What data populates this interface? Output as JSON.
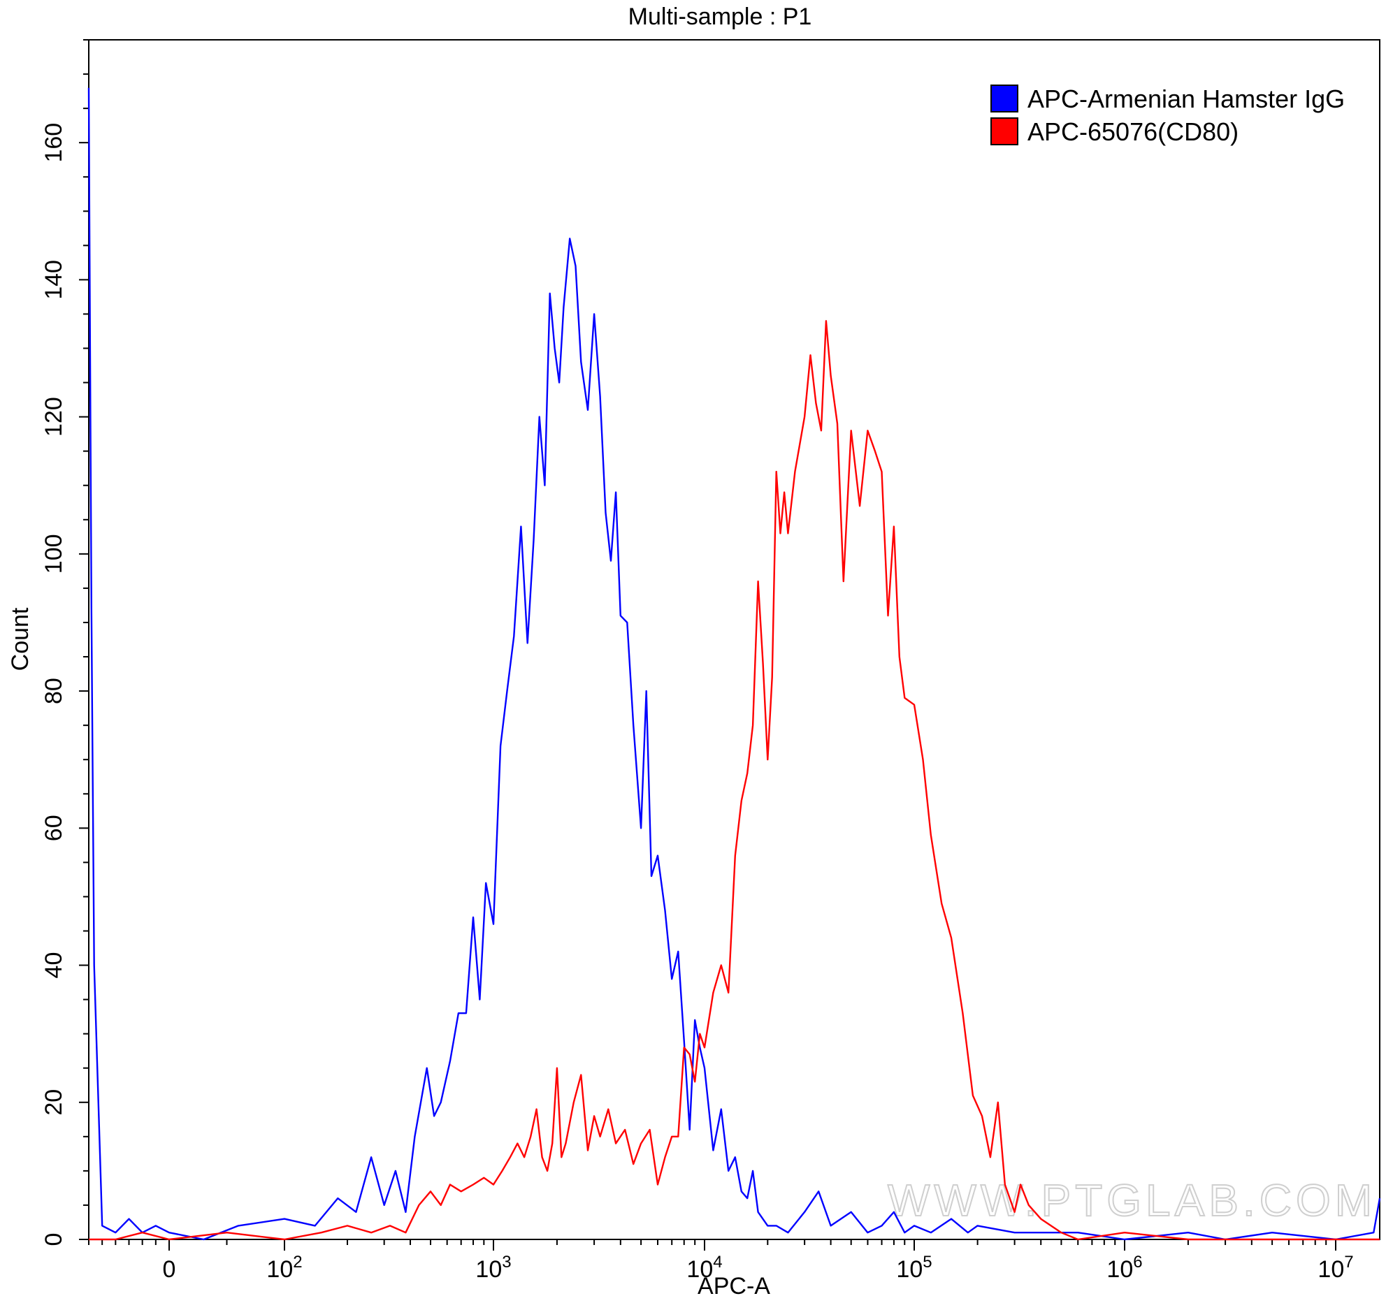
{
  "chart_data": {
    "type": "line",
    "title": "Multi-sample : P1",
    "xlabel": "APC-A",
    "ylabel": "Count",
    "x_scale": "biexponential",
    "xlim": [
      -300,
      16000000
    ],
    "ylim": [
      0,
      175
    ],
    "y_ticks": [
      0,
      20,
      40,
      60,
      80,
      100,
      120,
      140,
      160
    ],
    "x_ticks": [
      {
        "value": 0,
        "label": "0"
      },
      {
        "value": 100,
        "base": "10",
        "exp": "2"
      },
      {
        "value": 1000,
        "base": "10",
        "exp": "3"
      },
      {
        "value": 10000,
        "base": "10",
        "exp": "4"
      },
      {
        "value": 100000,
        "base": "10",
        "exp": "5"
      },
      {
        "value": 1000000,
        "base": "10",
        "exp": "6"
      },
      {
        "value": 10000000,
        "base": "10",
        "exp": "7"
      }
    ],
    "legend_position": "top-right",
    "watermark": "WWW.PTGLAB.COM",
    "series": [
      {
        "name": "APC-Armenian Hamster IgG",
        "color": "#0000ff",
        "points": [
          [
            -300,
            168
          ],
          [
            -290,
            92
          ],
          [
            -280,
            40
          ],
          [
            -250,
            2
          ],
          [
            -200,
            1
          ],
          [
            -150,
            3
          ],
          [
            -100,
            1
          ],
          [
            -50,
            2
          ],
          [
            0,
            1
          ],
          [
            30,
            0
          ],
          [
            60,
            2
          ],
          [
            100,
            3
          ],
          [
            140,
            2
          ],
          [
            180,
            6
          ],
          [
            220,
            4
          ],
          [
            260,
            12
          ],
          [
            300,
            5
          ],
          [
            340,
            10
          ],
          [
            380,
            4
          ],
          [
            420,
            15
          ],
          [
            480,
            25
          ],
          [
            520,
            18
          ],
          [
            560,
            20
          ],
          [
            620,
            26
          ],
          [
            680,
            33
          ],
          [
            740,
            33
          ],
          [
            800,
            47
          ],
          [
            860,
            35
          ],
          [
            920,
            52
          ],
          [
            1000,
            46
          ],
          [
            1080,
            72
          ],
          [
            1160,
            80
          ],
          [
            1250,
            88
          ],
          [
            1350,
            104
          ],
          [
            1450,
            87
          ],
          [
            1550,
            102
          ],
          [
            1650,
            120
          ],
          [
            1750,
            110
          ],
          [
            1850,
            138
          ],
          [
            1950,
            130
          ],
          [
            2050,
            125
          ],
          [
            2150,
            136
          ],
          [
            2300,
            146
          ],
          [
            2450,
            142
          ],
          [
            2600,
            128
          ],
          [
            2800,
            121
          ],
          [
            3000,
            135
          ],
          [
            3200,
            123
          ],
          [
            3400,
            106
          ],
          [
            3600,
            99
          ],
          [
            3800,
            109
          ],
          [
            4000,
            91
          ],
          [
            4300,
            90
          ],
          [
            4600,
            75
          ],
          [
            5000,
            60
          ],
          [
            5300,
            80
          ],
          [
            5600,
            53
          ],
          [
            6000,
            56
          ],
          [
            6500,
            48
          ],
          [
            7000,
            38
          ],
          [
            7500,
            42
          ],
          [
            8000,
            29
          ],
          [
            8500,
            16
          ],
          [
            9000,
            32
          ],
          [
            9500,
            28
          ],
          [
            10000,
            25
          ],
          [
            11000,
            13
          ],
          [
            12000,
            19
          ],
          [
            13000,
            10
          ],
          [
            14000,
            12
          ],
          [
            15000,
            7
          ],
          [
            16000,
            6
          ],
          [
            17000,
            10
          ],
          [
            18000,
            4
          ],
          [
            20000,
            2
          ],
          [
            22000,
            2
          ],
          [
            25000,
            1
          ],
          [
            30000,
            4
          ],
          [
            35000,
            7
          ],
          [
            40000,
            2
          ],
          [
            50000,
            4
          ],
          [
            60000,
            1
          ],
          [
            70000,
            2
          ],
          [
            80000,
            4
          ],
          [
            90000,
            1
          ],
          [
            100000,
            2
          ],
          [
            120000,
            1
          ],
          [
            150000,
            3
          ],
          [
            180000,
            1
          ],
          [
            200000,
            2
          ],
          [
            300000,
            1
          ],
          [
            400000,
            1
          ],
          [
            600000,
            1
          ],
          [
            1000000,
            0
          ],
          [
            2000000,
            1
          ],
          [
            3000000,
            0
          ],
          [
            5000000,
            1
          ],
          [
            10000000,
            0
          ],
          [
            15000000,
            1
          ],
          [
            16000000,
            6
          ]
        ]
      },
      {
        "name": "APC-65076(CD80)",
        "color": "#ff0000",
        "points": [
          [
            -300,
            0
          ],
          [
            -200,
            0
          ],
          [
            -100,
            1
          ],
          [
            0,
            0
          ],
          [
            50,
            1
          ],
          [
            100,
            0
          ],
          [
            150,
            1
          ],
          [
            200,
            2
          ],
          [
            260,
            1
          ],
          [
            320,
            2
          ],
          [
            380,
            1
          ],
          [
            440,
            5
          ],
          [
            500,
            7
          ],
          [
            560,
            5
          ],
          [
            620,
            8
          ],
          [
            700,
            7
          ],
          [
            800,
            8
          ],
          [
            900,
            9
          ],
          [
            1000,
            8
          ],
          [
            1100,
            10
          ],
          [
            1200,
            12
          ],
          [
            1300,
            14
          ],
          [
            1400,
            12
          ],
          [
            1500,
            15
          ],
          [
            1600,
            19
          ],
          [
            1700,
            12
          ],
          [
            1800,
            10
          ],
          [
            1900,
            14
          ],
          [
            2000,
            25
          ],
          [
            2100,
            12
          ],
          [
            2200,
            14
          ],
          [
            2400,
            20
          ],
          [
            2600,
            24
          ],
          [
            2800,
            13
          ],
          [
            3000,
            18
          ],
          [
            3200,
            15
          ],
          [
            3500,
            19
          ],
          [
            3800,
            14
          ],
          [
            4200,
            16
          ],
          [
            4600,
            11
          ],
          [
            5000,
            14
          ],
          [
            5500,
            16
          ],
          [
            6000,
            8
          ],
          [
            6500,
            12
          ],
          [
            7000,
            15
          ],
          [
            7500,
            15
          ],
          [
            8000,
            28
          ],
          [
            8500,
            27
          ],
          [
            9000,
            23
          ],
          [
            9500,
            30
          ],
          [
            10000,
            28
          ],
          [
            11000,
            36
          ],
          [
            12000,
            40
          ],
          [
            13000,
            36
          ],
          [
            14000,
            56
          ],
          [
            15000,
            64
          ],
          [
            16000,
            68
          ],
          [
            17000,
            75
          ],
          [
            18000,
            96
          ],
          [
            19000,
            84
          ],
          [
            20000,
            70
          ],
          [
            21000,
            82
          ],
          [
            22000,
            112
          ],
          [
            23000,
            103
          ],
          [
            24000,
            109
          ],
          [
            25000,
            103
          ],
          [
            27000,
            112
          ],
          [
            30000,
            120
          ],
          [
            32000,
            129
          ],
          [
            34000,
            122
          ],
          [
            36000,
            118
          ],
          [
            38000,
            134
          ],
          [
            40000,
            126
          ],
          [
            43000,
            119
          ],
          [
            46000,
            96
          ],
          [
            50000,
            118
          ],
          [
            55000,
            107
          ],
          [
            60000,
            118
          ],
          [
            65000,
            115
          ],
          [
            70000,
            112
          ],
          [
            75000,
            91
          ],
          [
            80000,
            104
          ],
          [
            85000,
            85
          ],
          [
            90000,
            79
          ],
          [
            100000,
            78
          ],
          [
            110000,
            70
          ],
          [
            120000,
            59
          ],
          [
            135000,
            49
          ],
          [
            150000,
            44
          ],
          [
            170000,
            33
          ],
          [
            190000,
            21
          ],
          [
            210000,
            18
          ],
          [
            230000,
            12
          ],
          [
            250000,
            20
          ],
          [
            270000,
            8
          ],
          [
            300000,
            4
          ],
          [
            320000,
            8
          ],
          [
            350000,
            5
          ],
          [
            400000,
            3
          ],
          [
            500000,
            1
          ],
          [
            600000,
            0
          ],
          [
            1000000,
            1
          ],
          [
            2000000,
            0
          ],
          [
            5000000,
            0
          ],
          [
            16000000,
            0
          ]
        ]
      }
    ]
  }
}
